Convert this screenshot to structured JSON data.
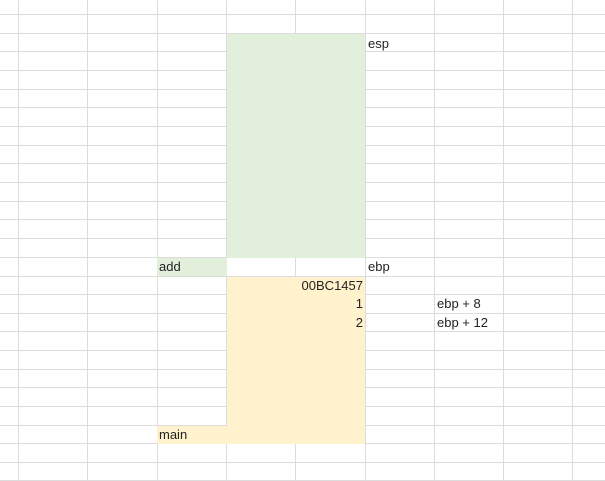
{
  "sheet": {
    "labels": {
      "esp": "esp",
      "ebp": "ebp",
      "add": "add",
      "main": "main",
      "return_address": "00BC1457",
      "arg1": "1",
      "arg2": "2",
      "arg1_offset": "ebp + 8",
      "arg2_offset": "ebp + 12"
    },
    "colors": {
      "add_frame": "#e2efda",
      "main_frame": "#fff2cc",
      "gridline": "#dcdcdc"
    }
  }
}
